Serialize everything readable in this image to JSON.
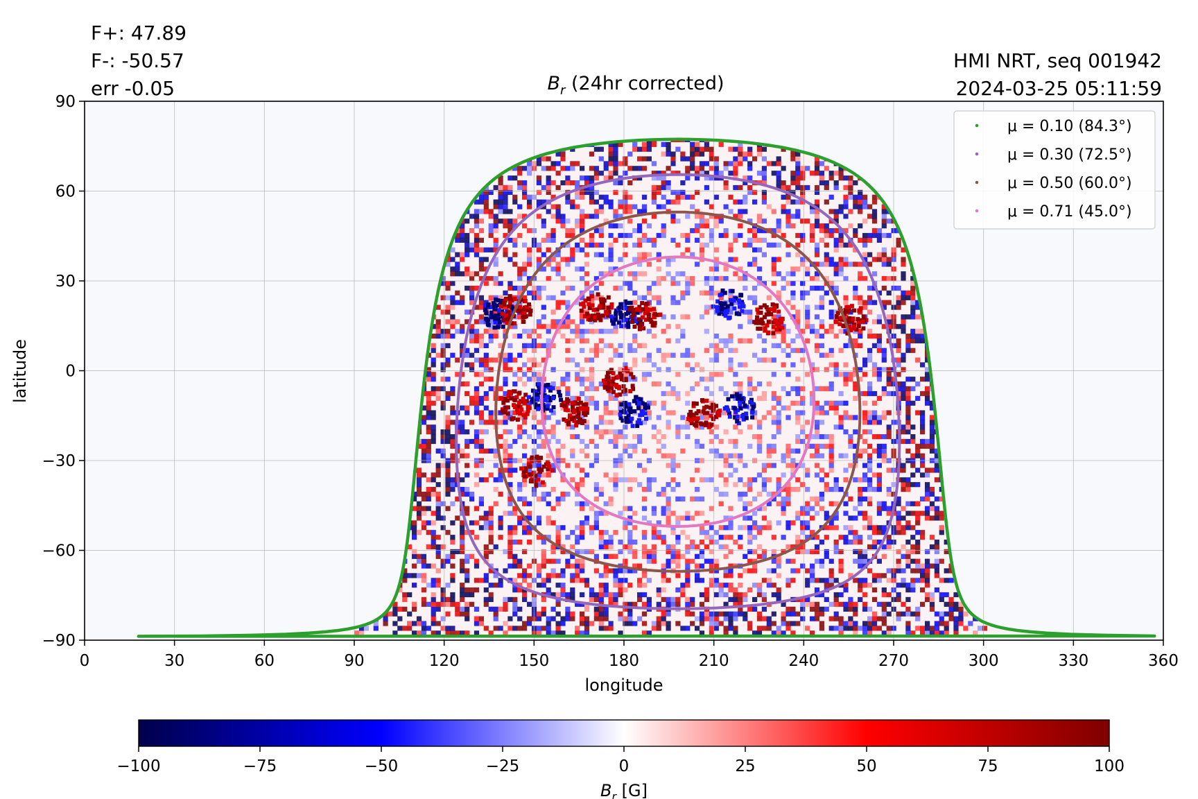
{
  "chart_data": {
    "type": "heatmap",
    "title_main": "B",
    "title_sub": "r",
    "title_rest": " (24hr corrected)",
    "stats": {
      "fplus": "F+: 47.89",
      "fminus": "F-: -50.57",
      "err": "err -0.05"
    },
    "source": {
      "line1": "HMI NRT, seq 001942",
      "line2": "2024-03-25 05:11:59"
    },
    "xlabel": "longitude",
    "ylabel": "latitude",
    "xlim": [
      0,
      360
    ],
    "ylim": [
      -90,
      90
    ],
    "xticks": [
      0,
      30,
      60,
      90,
      120,
      150,
      180,
      210,
      240,
      270,
      300,
      330,
      360
    ],
    "yticks": [
      90,
      60,
      30,
      0,
      -30,
      -60,
      -90
    ],
    "ytick_labels": [
      "90",
      "60",
      "30",
      "0",
      "−30",
      "−60",
      "−90"
    ],
    "grid": true,
    "legend_position": "top-right",
    "series": [
      {
        "name": "μ = 0.10 (84.3°)",
        "mu_angle": 84.3,
        "color": "#2ca02c"
      },
      {
        "name": "μ = 0.30 (72.5°)",
        "mu_angle": 72.5,
        "color": "#9467bd"
      },
      {
        "name": "μ = 0.50 (60.0°)",
        "mu_angle": 60.0,
        "color": "#8c564b"
      },
      {
        "name": "μ = 0.71 (45.0°)",
        "mu_angle": 45.0,
        "color": "#e377c2"
      }
    ],
    "disk_center": {
      "longitude": 198,
      "latitude": -7
    },
    "magnetic_regions": [
      {
        "lon": 137,
        "lat": 20,
        "sign": "negative"
      },
      {
        "lon": 143,
        "lat": 21,
        "sign": "positive"
      },
      {
        "lon": 170,
        "lat": 22,
        "sign": "positive"
      },
      {
        "lon": 180,
        "lat": 19,
        "sign": "negative"
      },
      {
        "lon": 186,
        "lat": 19,
        "sign": "positive"
      },
      {
        "lon": 214,
        "lat": 23,
        "sign": "negative"
      },
      {
        "lon": 228,
        "lat": 18,
        "sign": "positive"
      },
      {
        "lon": 255,
        "lat": 18,
        "sign": "positive"
      },
      {
        "lon": 183,
        "lat": -13,
        "sign": "negative"
      },
      {
        "lon": 206,
        "lat": -14,
        "sign": "positive"
      },
      {
        "lon": 218,
        "lat": -12,
        "sign": "negative"
      },
      {
        "lon": 143,
        "lat": -11,
        "sign": "positive"
      },
      {
        "lon": 163,
        "lat": -13,
        "sign": "positive"
      },
      {
        "lon": 153,
        "lat": -8,
        "sign": "negative"
      },
      {
        "lon": 178,
        "lat": -3,
        "sign": "positive"
      },
      {
        "lon": 150,
        "lat": -33,
        "sign": "positive"
      }
    ],
    "colorbar": {
      "min": -100,
      "max": 100,
      "ticks": [
        -100,
        -75,
        -50,
        -25,
        0,
        25,
        50,
        75,
        100
      ],
      "tick_labels": [
        "−100",
        "−75",
        "−50",
        "−25",
        "0",
        "25",
        "50",
        "75",
        "100"
      ],
      "label_main": "B",
      "label_sub": "r",
      "label_unit": " [G]",
      "colormap": "seismic",
      "colors": [
        "#00004c",
        "#0000ff",
        "#ffffff",
        "#ff0000",
        "#800000"
      ]
    }
  }
}
